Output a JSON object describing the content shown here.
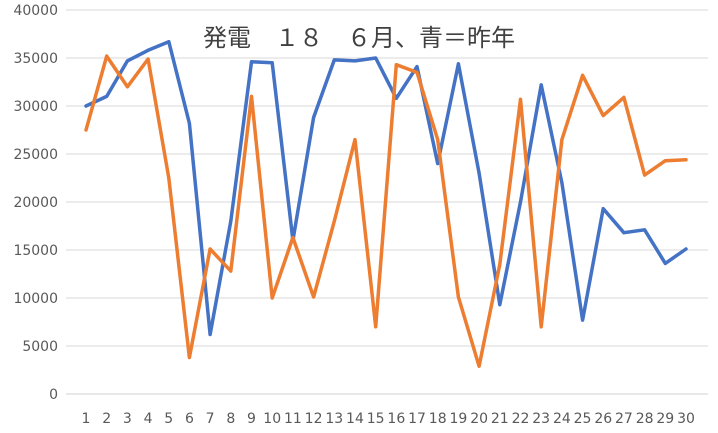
{
  "chart_data": {
    "type": "line",
    "title": "発電　１８　６月、青＝昨年",
    "x": [
      1,
      2,
      3,
      4,
      5,
      6,
      7,
      8,
      9,
      10,
      11,
      12,
      13,
      14,
      15,
      16,
      17,
      18,
      19,
      20,
      21,
      22,
      23,
      24,
      25,
      26,
      27,
      28,
      29,
      30
    ],
    "x_tick_labels": [
      "1",
      "2",
      "3",
      "4",
      "5",
      "6",
      "7",
      "8",
      "9",
      "10",
      "11",
      "12",
      "13",
      "14",
      "15",
      "16",
      "17",
      "18",
      "19",
      "20",
      "21",
      "22",
      "23",
      "24",
      "25",
      "26",
      "27",
      "28",
      "29",
      "30"
    ],
    "ylim": [
      0,
      40000
    ],
    "y_ticks": [
      0,
      5000,
      10000,
      15000,
      20000,
      25000,
      30000,
      35000,
      40000
    ],
    "y_tick_labels": [
      "0",
      "5000",
      "10000",
      "15000",
      "20000",
      "25000",
      "30000",
      "35000",
      "40000"
    ],
    "grid": true,
    "xlabel": "",
    "ylabel": "",
    "series": [
      {
        "color": "#4472C4",
        "values": [
          30000,
          31000,
          34700,
          35800,
          36700,
          28200,
          6200,
          18000,
          34600,
          34500,
          16000,
          28800,
          34800,
          34700,
          35000,
          30800,
          34100,
          24000,
          34400,
          23000,
          9300,
          20000,
          32200,
          22000,
          7700,
          19300,
          16800,
          17100,
          13600,
          15100
        ]
      },
      {
        "color": "#ED7D31",
        "values": [
          27500,
          35200,
          32000,
          34900,
          22500,
          3800,
          15100,
          12800,
          31000,
          10000,
          16300,
          10100,
          18000,
          26500,
          7000,
          34300,
          33500,
          26500,
          10100,
          2900,
          13500,
          30700,
          7000,
          26500,
          33200,
          29000,
          30900,
          22800,
          24300,
          24400
        ]
      }
    ]
  }
}
